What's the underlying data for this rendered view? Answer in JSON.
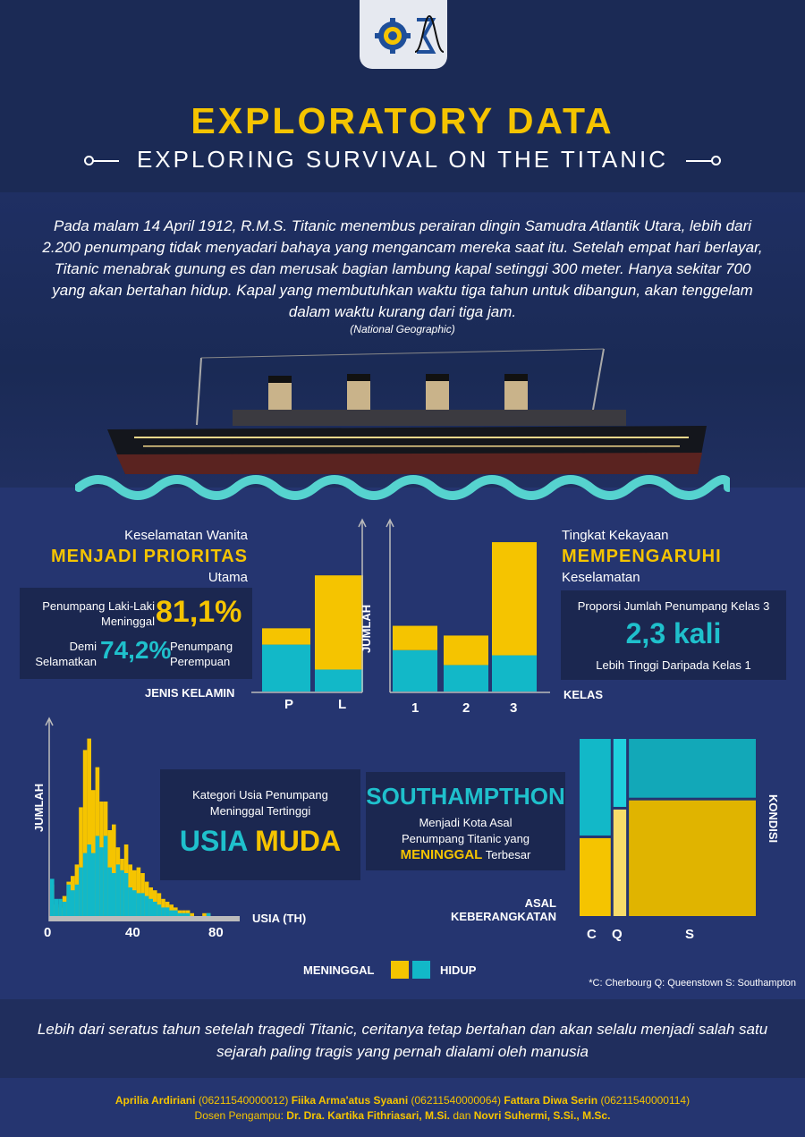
{
  "header": {
    "title": "EXPLORATORY DATA",
    "subtitle": "EXPLORING SURVIVAL ON THE TITANIC",
    "logos": [
      "gear-emblem-icon",
      "sigma-distribution-icon"
    ]
  },
  "intro": {
    "text": "Pada malam 14 April 1912, R.M.S. Titanic menembus perairan dingin Samudra Atlantik Utara, lebih dari 2.200 penumpang tidak menyadari bahaya yang mengancam mereka saat itu. Setelah empat hari berlayar, Titanic menabrak gunung es dan merusak bagian lambung kapal setinggi 300 meter. Hanya sekitar 700 yang akan bertahan hidup. Kapal yang membutuhkan waktu tiga tahun untuk dibangun, akan tenggelam dalam waktu kurang dari tiga jam.",
    "source": "(National Geographic)"
  },
  "gender_panel": {
    "line1": "Keselamatan Wanita",
    "line2": "MENJADI PRIORITAS",
    "line3": "Utama",
    "male_label1": "Penumpang Laki-Laki",
    "male_label2": "Meninggal",
    "male_pct": "81,1%",
    "female_label1": "Demi",
    "female_label2": "Selamatkan",
    "female_pct": "74,2%",
    "female_label3": "Penumpang",
    "female_label4": "Perempuan"
  },
  "class_panel": {
    "line1": "Tingkat Kekayaan",
    "line2": "MEMPENGARUHI",
    "line3": "Keselamatan",
    "box_line1": "Proporsi Jumlah Penumpang Kelas 3",
    "box_value": "2,3 kali",
    "box_line2": "Lebih Tinggi Daripada Kelas 1"
  },
  "age_panel": {
    "line1": "Kategori Usia Penumpang",
    "line2": "Meninggal Tertinggi",
    "big1": "USIA",
    "big2": "MUDA"
  },
  "port_panel": {
    "title": "SOUTHAMPTHON",
    "line1": "Menjadi Kota Asal",
    "line2": "Penumpang Titanic yang",
    "highlight": "MENINGGAL",
    "line3": "Terbesar"
  },
  "legend": {
    "died": "MENINGGAL",
    "survived": "HIDUP",
    "footnote": "*C: Cherbourg  Q: Queenstown  S: Southampton"
  },
  "colors": {
    "died": "#f5c400",
    "survived": "#12b8c8",
    "background": "#253570",
    "header": "#1b2a55"
  },
  "closing": {
    "text": "Lebih dari seratus tahun setelah tragedi Titanic, ceritanya tetap bertahan dan akan selalu menjadi salah satu sejarah paling tragis yang pernah dialami oleh manusia"
  },
  "credits": {
    "authors": [
      {
        "name": "Aprilia Ardiriani",
        "id": "(06211540000012)"
      },
      {
        "name": "Fiika Arma'atus Syaani",
        "id": "(06211540000064)"
      },
      {
        "name": "Fattara Diwa Serin",
        "id": "(06211540000114)"
      }
    ],
    "lecturer_label": "Dosen Pengampu:",
    "lecturer1": "Dr. Dra. Kartika Fithriasari, M.Si.",
    "conj": "dan",
    "lecturer2": "Novri Suhermi, S.Si., M.Sc."
  },
  "chart_data": [
    {
      "type": "bar",
      "stacked": true,
      "xlabel": "JENIS KELAMIN",
      "ylabel": "",
      "categories": [
        "P",
        "L"
      ],
      "series": [
        {
          "name": "HIDUP",
          "values": [
            233,
            109
          ]
        },
        {
          "name": "MENINGGAL",
          "values": [
            81,
            468
          ]
        }
      ]
    },
    {
      "type": "bar",
      "stacked": true,
      "xlabel": "KELAS",
      "ylabel": "JUMLAH",
      "categories": [
        "1",
        "2",
        "3"
      ],
      "series": [
        {
          "name": "HIDUP",
          "values": [
            136,
            87,
            119
          ]
        },
        {
          "name": "MENINGGAL",
          "values": [
            80,
            97,
            372
          ]
        }
      ]
    },
    {
      "type": "bar",
      "stacked": true,
      "xlabel": "USIA (TH)",
      "ylabel": "JUMLAH",
      "x_ticks": [
        "0",
        "40",
        "80"
      ],
      "xlim": [
        0,
        80
      ],
      "bin_width": 2,
      "series": [
        {
          "name": "MENINGGAL",
          "values": [
            11,
            4,
            3,
            7,
            12,
            14,
            18,
            38,
            58,
            62,
            44,
            52,
            40,
            40,
            30,
            32,
            24,
            20,
            25,
            18,
            16,
            17,
            15,
            12,
            10,
            9,
            8,
            6,
            5,
            4,
            3,
            2,
            2,
            2,
            1,
            0,
            0,
            1,
            1,
            0
          ]
        },
        {
          "name": "HIDUP",
          "values": [
            13,
            6,
            6,
            5,
            11,
            9,
            11,
            17,
            22,
            25,
            22,
            28,
            24,
            28,
            17,
            15,
            18,
            16,
            15,
            10,
            9,
            8,
            8,
            7,
            6,
            5,
            4,
            3,
            3,
            2,
            2,
            1,
            1,
            1,
            0,
            0,
            0,
            0,
            1,
            0
          ]
        }
      ]
    },
    {
      "type": "mosaic",
      "xlabel": "ASAL KEBERANGKATAN",
      "ylabel": "KONDISI",
      "categories": [
        "C",
        "Q",
        "S"
      ],
      "series": [
        {
          "name": "HIDUP",
          "values": [
            93,
            30,
            217
          ]
        },
        {
          "name": "MENINGGAL",
          "values": [
            75,
            47,
            427
          ]
        }
      ]
    }
  ]
}
